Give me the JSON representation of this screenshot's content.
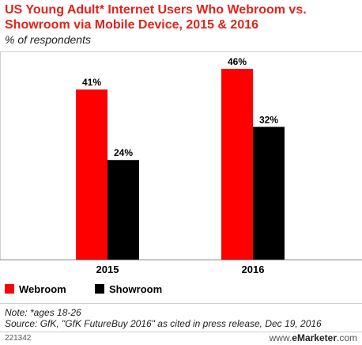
{
  "chart_data": {
    "type": "bar",
    "title": "US Young Adult* Internet Users Who Webroom vs. Showroom via Mobile Device, 2015 & 2016",
    "subtitle": "% of respondents",
    "categories": [
      "2015",
      "2016"
    ],
    "series": [
      {
        "name": "Webroom",
        "values": [
          41,
          46
        ],
        "labels": [
          "41%",
          "46%"
        ],
        "color": "#ff0000"
      },
      {
        "name": "Showroom",
        "values": [
          24,
          32
        ],
        "labels": [
          "24%",
          "32%"
        ],
        "color": "#000000"
      }
    ],
    "ylim": [
      0,
      50
    ],
    "grid": false,
    "legend": "bottom-left"
  },
  "footer": {
    "note": "Note: *ages 18-26",
    "source": "Source: GfK, \"GfK FutureBuy 2016\" as cited in press release, Dec 19, 2016",
    "chart_id": "221342",
    "brand_prefix": "www.",
    "brand_name": "eMarketer",
    "brand_suffix": ".com"
  }
}
